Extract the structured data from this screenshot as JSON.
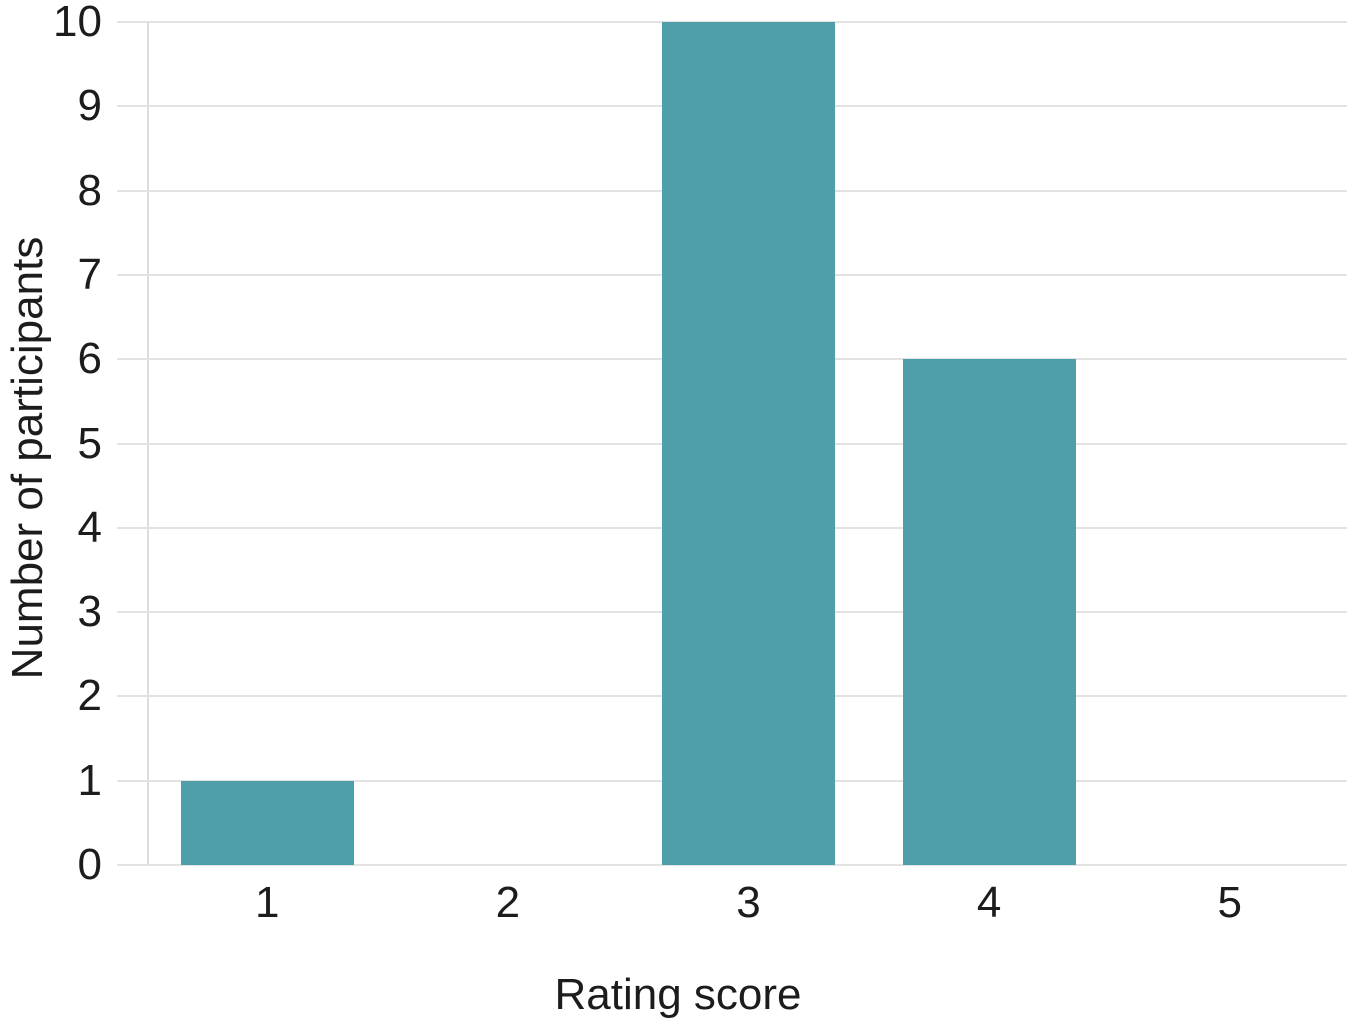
{
  "chart_data": {
    "type": "bar",
    "categories": [
      "1",
      "2",
      "3",
      "4",
      "5"
    ],
    "values": [
      1,
      0,
      10,
      6,
      0
    ],
    "title": "",
    "xlabel": "Rating score",
    "ylabel": "Number of participants",
    "ylim": [
      0,
      10
    ],
    "yticks": [
      0,
      1,
      2,
      3,
      4,
      5,
      6,
      7,
      8,
      9,
      10
    ],
    "legend": "none",
    "grid": "horizontal-only",
    "colors": {
      "bar": "#4f9faa",
      "gridline": "#e2e2e2",
      "axis_line": "#dcdcdc",
      "text": "#1c1c1c",
      "background": "#ffffff"
    }
  }
}
